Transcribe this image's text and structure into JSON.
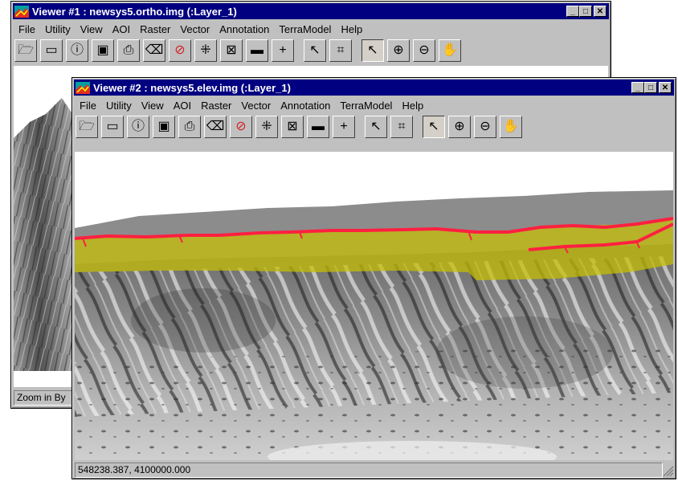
{
  "viewer1": {
    "title": "Viewer #1 : newsys5.ortho.img (:Layer_1)",
    "menu": [
      "File",
      "Utility",
      "View",
      "AOI",
      "Raster",
      "Vector",
      "Annotation",
      "TerraModel",
      "Help"
    ],
    "status": "Zoom in By"
  },
  "viewer2": {
    "title": "Viewer #2 : newsys5.elev.img (:Layer_1)",
    "menu": [
      "File",
      "Utility",
      "View",
      "AOI",
      "Raster",
      "Vector",
      "Annotation",
      "TerraModel",
      "Help"
    ],
    "status": "548238.387, 4100000.000"
  },
  "window_controls": {
    "minimize": "_",
    "maximize": "□",
    "close": "✕"
  },
  "toolbar_icons": [
    "open-folder-icon",
    "folder-icon",
    "info-icon",
    "save-icon",
    "print-icon",
    "eraser-icon",
    "clear-icon",
    "scale-icon",
    "fit-icon",
    "measure-icon",
    "inquire-cursor-icon",
    "pointer-arrow-icon",
    "profile-icon",
    "select-arrow-icon",
    "zoom-in-icon",
    "zoom-out-icon",
    "pan-hand-icon"
  ],
  "toolbar_glyphs": [
    "🗁",
    "▭",
    "ⓘ",
    "▣",
    "⎙",
    "⌫",
    "⊘",
    "⁜",
    "⊠",
    "▬",
    "+",
    "↖",
    "⌗",
    "↖",
    "⊕",
    "⊖",
    "✋"
  ],
  "colors": {
    "title_active": "#000080",
    "chrome": "#c0c0c0",
    "vector_line": "#ff2040",
    "aoi_fill": "#c8c000"
  }
}
